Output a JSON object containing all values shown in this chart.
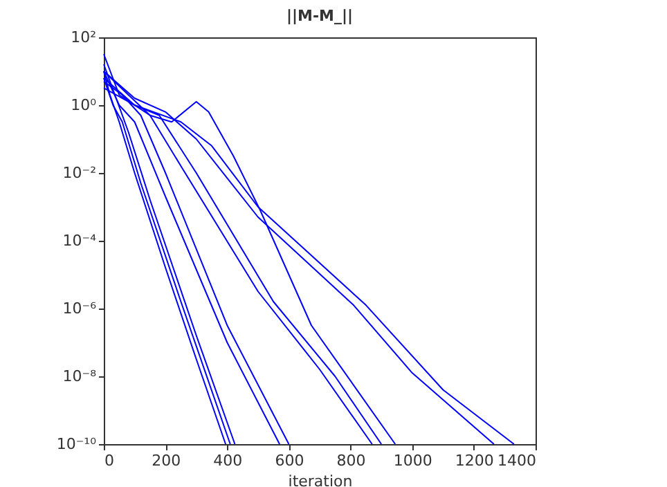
{
  "chart_data": {
    "type": "line",
    "title": "||M-M_||",
    "xlabel": "iteration",
    "log": "y",
    "grid": false,
    "legend": false,
    "line_style": "solid",
    "xlim": [
      0,
      1400
    ],
    "xticks": [
      0,
      200,
      400,
      600,
      800,
      1000,
      1200,
      1400
    ],
    "ylim": [
      1e-10,
      100
    ],
    "yticks": [
      {
        "value": 100,
        "label": "10²"
      },
      {
        "value": 1,
        "label": "10⁰"
      },
      {
        "value": 0.01,
        "label": "10⁻²"
      },
      {
        "value": 0.0001,
        "label": "10⁻⁴"
      },
      {
        "value": 1e-06,
        "label": "10⁻⁶"
      },
      {
        "value": 1e-08,
        "label": "10⁻⁸"
      },
      {
        "value": 1e-10,
        "label": "10⁻¹⁰"
      }
    ],
    "series": [
      {
        "color": "#0000ff",
        "x": [
          0,
          20,
          50,
          100,
          200,
          300,
          395
        ],
        "values": [
          10,
          2,
          0.32,
          0.01,
          1.6e-05,
          3.2e-08,
          1e-10
        ]
      },
      {
        "color": "#0000ff",
        "x": [
          0,
          30,
          60,
          120,
          250,
          410
        ],
        "values": [
          6.3,
          1,
          0.32,
          0.005,
          1.6e-06,
          1e-10
        ]
      },
      {
        "color": "#0000ff",
        "x": [
          0,
          40,
          80,
          150,
          300,
          425
        ],
        "values": [
          16,
          1.6,
          0.16,
          0.0016,
          1.6e-07,
          1e-10
        ]
      },
      {
        "color": "#0000ff",
        "x": [
          0,
          50,
          100,
          200,
          400,
          570
        ],
        "values": [
          10,
          1,
          0.32,
          0.002,
          1e-07,
          1e-10
        ]
      },
      {
        "color": "#0000ff",
        "x": [
          0,
          60,
          120,
          200,
          400,
          600
        ],
        "values": [
          5,
          2,
          0.5,
          0.01,
          3.2e-07,
          1e-10
        ]
      },
      {
        "color": "#0000ff",
        "x": [
          0,
          80,
          150,
          250,
          500,
          700,
          870
        ],
        "values": [
          10,
          2,
          0.5,
          0.016,
          3.2e-06,
          1.6e-08,
          1e-10
        ]
      },
      {
        "color": "#0000ff",
        "x": [
          0,
          100,
          180,
          300,
          550,
          750,
          900
        ],
        "values": [
          3.2,
          1,
          0.5,
          0.01,
          1.6e-06,
          1e-08,
          1e-10
        ]
      },
      {
        "color": "#0000ff",
        "x": [
          0,
          50,
          150,
          220,
          300,
          340,
          420,
          507,
          673,
          945
        ],
        "values": [
          32,
          2,
          0.5,
          0.32,
          1.26,
          0.63,
          0.032,
          0.0008,
          3.2e-07,
          1e-10
        ]
      },
      {
        "color": "#0000ff",
        "x": [
          0,
          100,
          200,
          300,
          500,
          810,
          1000,
          1265
        ],
        "values": [
          10,
          1.6,
          0.63,
          0.1,
          0.0005,
          1.26e-06,
          1.26e-08,
          1e-10
        ]
      },
      {
        "color": "#0000ff",
        "x": [
          0,
          100,
          250,
          350,
          500,
          850,
          1100,
          1330
        ],
        "values": [
          6.3,
          1,
          0.32,
          0.063,
          0.001,
          1.26e-06,
          4e-09,
          1e-10
        ]
      }
    ]
  }
}
